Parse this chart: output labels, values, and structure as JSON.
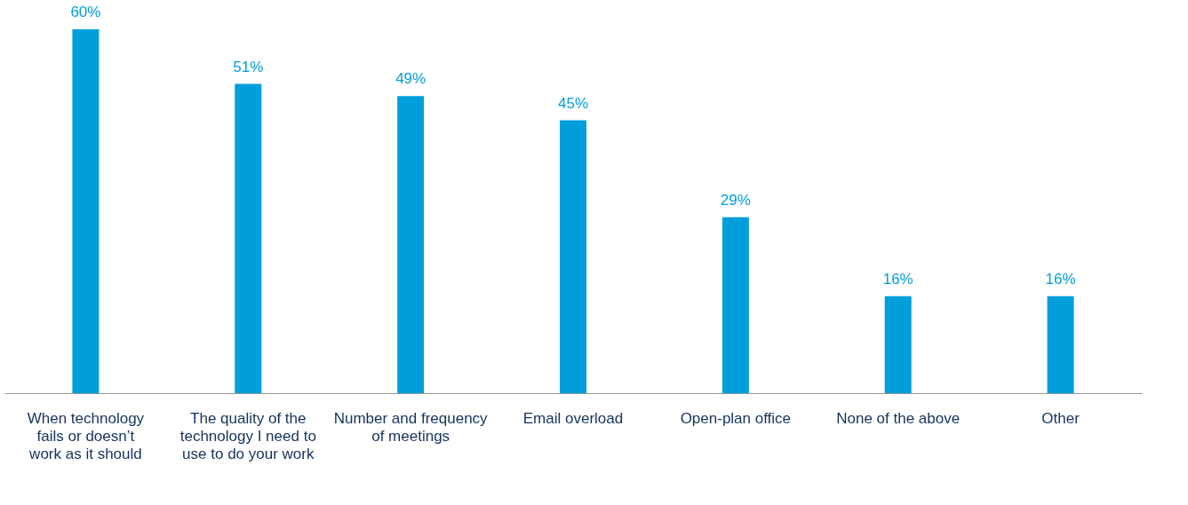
{
  "chart_data": {
    "type": "bar",
    "categories": [
      "When technology fails or doesn’t work as it should",
      "The quality of the technology I need to use to do your work",
      "Number and frequency of meetings",
      "Email overload",
      "Open-plan office",
      "None of the above",
      "Other"
    ],
    "series": [
      {
        "color": "#009edb",
        "values": [
          60,
          51,
          49,
          45,
          29,
          16,
          16
        ],
        "value_labels": [
          "60%",
          "51%",
          "49%",
          "45%",
          "29%",
          "16%",
          "16%"
        ]
      }
    ],
    "grid": false
  }
}
